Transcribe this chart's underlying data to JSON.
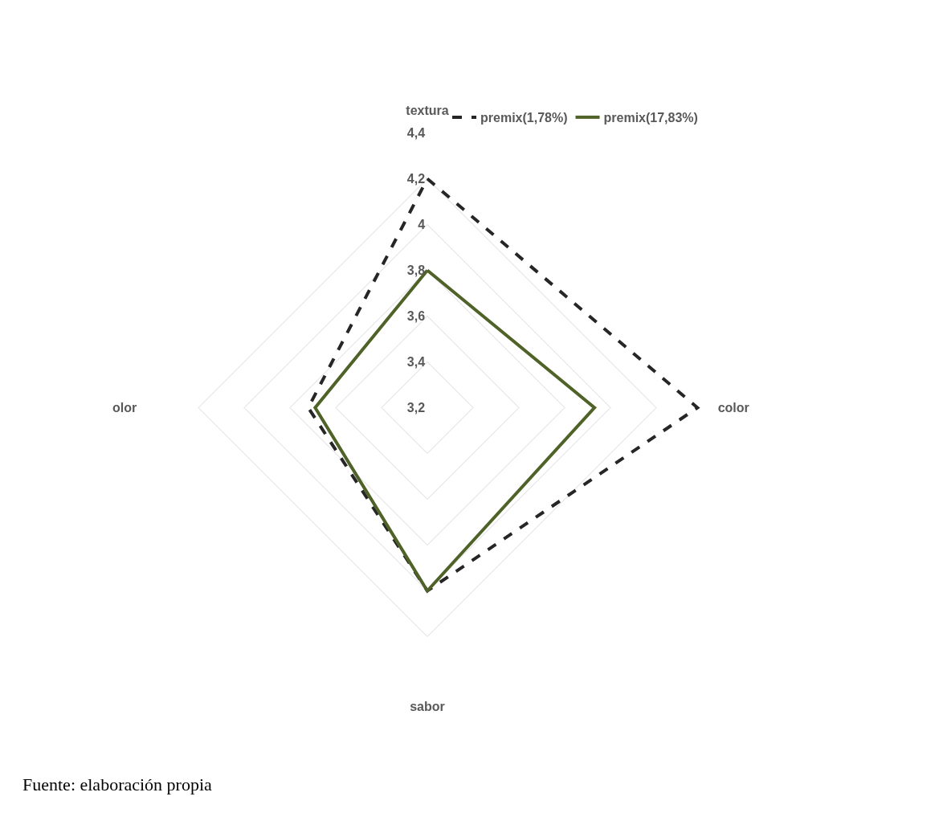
{
  "chart_data": {
    "type": "radar",
    "categories": [
      "textura",
      "color",
      "sabor",
      "olor"
    ],
    "series": [
      {
        "name": "premix(1,78%)",
        "color": "#262626",
        "line_style": "dashed",
        "values": [
          4.2,
          4.38,
          4.0,
          3.72
        ]
      },
      {
        "name": "premix(17,83%)",
        "color": "#4f6228",
        "line_style": "solid",
        "values": [
          3.8,
          3.93,
          4.0,
          3.69
        ]
      }
    ],
    "ylim": [
      3.2,
      4.4
    ],
    "yticks": [
      {
        "value": 3.2,
        "label": "3,2"
      },
      {
        "value": 3.4,
        "label": "3,4"
      },
      {
        "value": 3.6,
        "label": "3,6"
      },
      {
        "value": 3.8,
        "label": "3,8"
      },
      {
        "value": 4,
        "label": "4"
      },
      {
        "value": 4.2,
        "label": "4,2"
      },
      {
        "value": 4.4,
        "label": "4,4"
      }
    ],
    "grid": true,
    "legend": "top right",
    "marker": "none",
    "annotations": [
      "Fuente: elaboración propia"
    ]
  }
}
